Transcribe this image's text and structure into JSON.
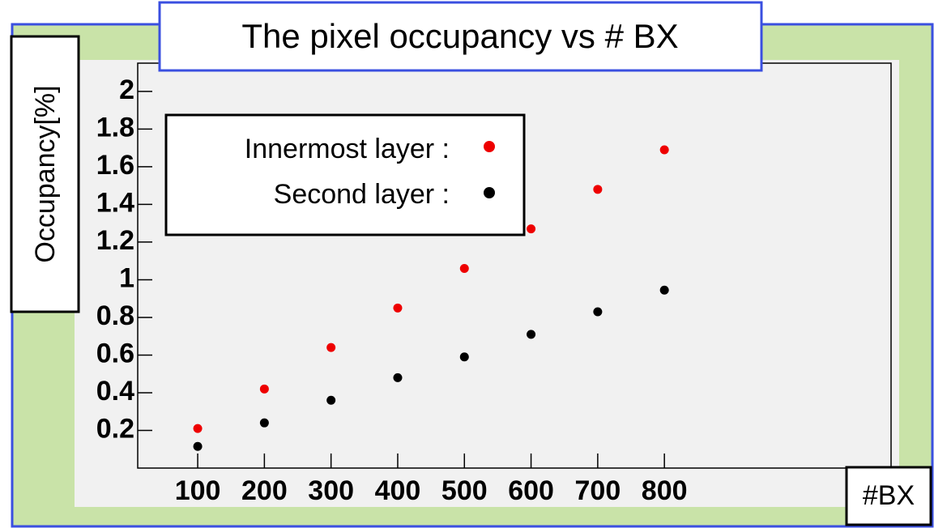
{
  "chart_data": {
    "type": "scatter",
    "title": "The pixel occupancy vs # BX",
    "xlabel": "#BX",
    "ylabel": "Occupancy[%]",
    "xlim": [
      10,
      1140
    ],
    "ylim": [
      0,
      2.15
    ],
    "xticks": [
      100,
      200,
      300,
      400,
      500,
      600,
      700,
      800
    ],
    "yticks": [
      0.2,
      0.4,
      0.6,
      0.8,
      1,
      1.2,
      1.4,
      1.6,
      1.8,
      2
    ],
    "series": [
      {
        "name": "Innermost layer :",
        "color": "#ee0000",
        "x": [
          100,
          200,
          300,
          400,
          500,
          600,
          700,
          800
        ],
        "values": [
          0.21,
          0.42,
          0.64,
          0.85,
          1.06,
          1.27,
          1.48,
          1.69
        ]
      },
      {
        "name": "Second layer :",
        "color": "#000000",
        "x": [
          100,
          200,
          300,
          400,
          500,
          600,
          700,
          800
        ],
        "values": [
          0.115,
          0.24,
          0.36,
          0.48,
          0.59,
          0.71,
          0.83,
          0.945
        ]
      }
    ]
  }
}
